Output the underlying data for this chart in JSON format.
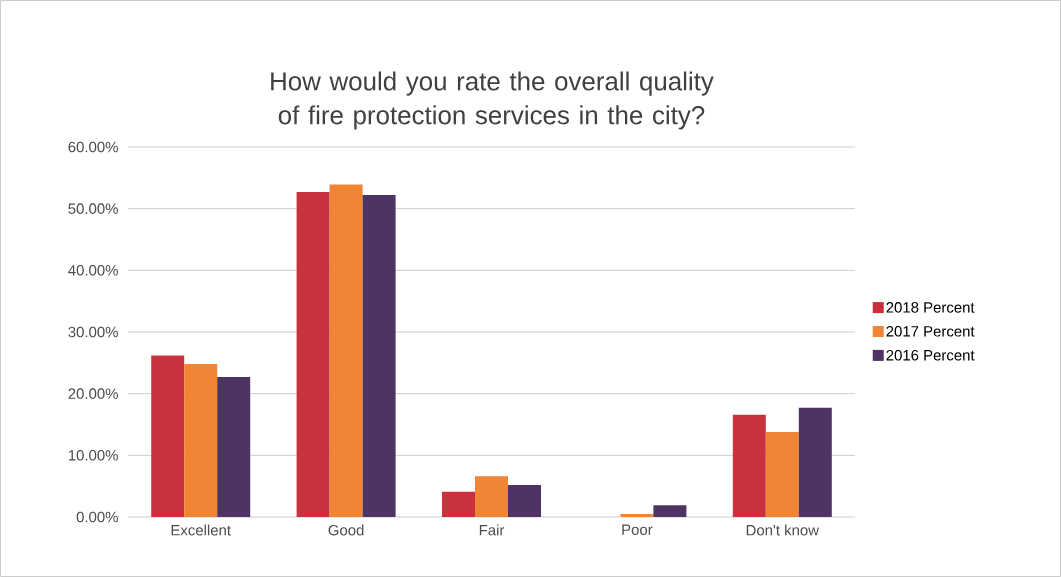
{
  "chart_data": {
    "type": "bar",
    "title": "How would you rate the overall quality of fire protection services in the city?",
    "categories": [
      "Excellent",
      "Good",
      "Fair",
      "Poor",
      "Don't know"
    ],
    "series": [
      {
        "name": "2018 Percent",
        "color": "#c8323c",
        "values": [
          26.2,
          52.7,
          4.1,
          0,
          16.6
        ]
      },
      {
        "name": "2017 Percent",
        "color": "#ef8535",
        "values": [
          24.8,
          53.9,
          6.6,
          0.5,
          13.8
        ]
      },
      {
        "name": "2016 Percent",
        "color": "#4e3465",
        "values": [
          22.7,
          52.2,
          5.2,
          1.9,
          17.7
        ]
      }
    ],
    "ylim": [
      0,
      60
    ],
    "yticks": [
      {
        "value": 0,
        "label": "0.00%"
      },
      {
        "value": 10,
        "label": "10.00%"
      },
      {
        "value": 20,
        "label": "20.00%"
      },
      {
        "value": 30,
        "label": "30.00%"
      },
      {
        "value": 40,
        "label": "40.00%"
      },
      {
        "value": 50,
        "label": "50.00%"
      },
      {
        "value": 60,
        "label": "60.00%"
      }
    ],
    "grid": "y",
    "legend": "right"
  }
}
